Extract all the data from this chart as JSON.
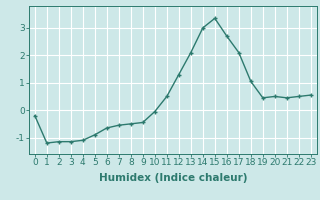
{
  "x": [
    0,
    1,
    2,
    3,
    4,
    5,
    6,
    7,
    8,
    9,
    10,
    11,
    12,
    13,
    14,
    15,
    16,
    17,
    18,
    19,
    20,
    21,
    22,
    23
  ],
  "y": [
    -0.2,
    -1.2,
    -1.15,
    -1.15,
    -1.1,
    -0.9,
    -0.65,
    -0.55,
    -0.5,
    -0.45,
    -0.05,
    0.5,
    1.3,
    2.1,
    3.0,
    3.35,
    2.7,
    2.1,
    1.05,
    0.45,
    0.5,
    0.45,
    0.5,
    0.55
  ],
  "line_color": "#2d7a6e",
  "marker": "+",
  "marker_size": 3.5,
  "linewidth": 1.0,
  "background_color": "#cde8e8",
  "grid_color": "#ffffff",
  "xlabel": "Humidex (Indice chaleur)",
  "xlim": [
    -0.5,
    23.5
  ],
  "ylim": [
    -1.6,
    3.8
  ],
  "yticks": [
    -1,
    0,
    1,
    2,
    3
  ],
  "xticks": [
    0,
    1,
    2,
    3,
    4,
    5,
    6,
    7,
    8,
    9,
    10,
    11,
    12,
    13,
    14,
    15,
    16,
    17,
    18,
    19,
    20,
    21,
    22,
    23
  ],
  "tick_color": "#2d7a6e",
  "tick_fontsize": 6.5,
  "xlabel_fontsize": 7.5
}
